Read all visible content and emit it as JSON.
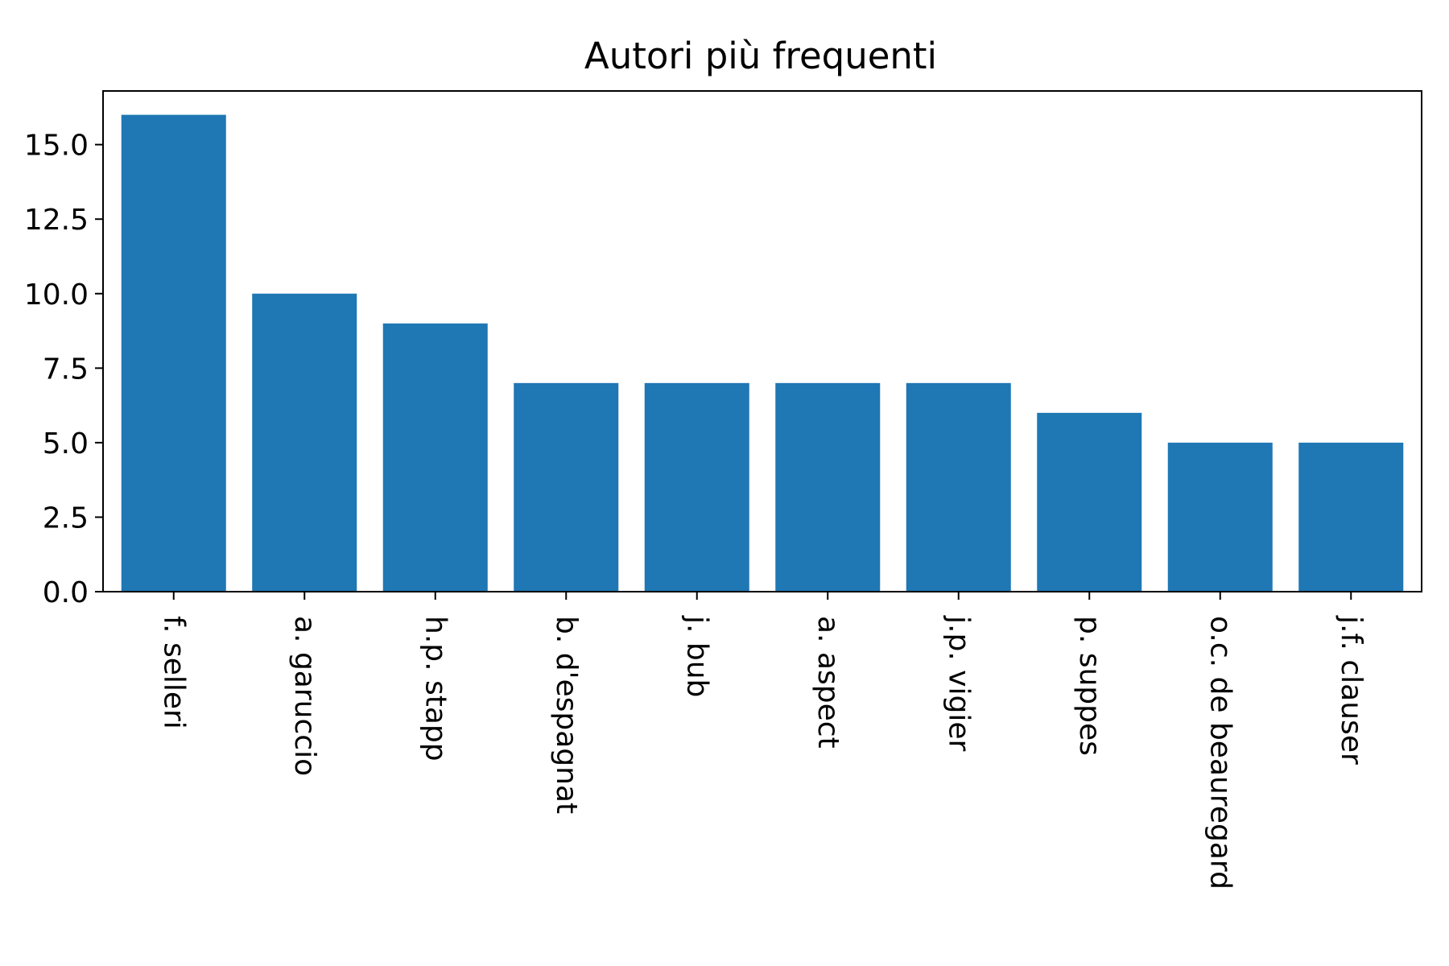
{
  "chart_data": {
    "type": "bar",
    "title": "Autori più frequenti",
    "xlabel": "",
    "ylabel": "",
    "categories": [
      "f. selleri",
      "a. garuccio",
      "h.p. stapp",
      "b. d'espagnat",
      "j. bub",
      "a. aspect",
      "j.p. vigier",
      "p. suppes",
      "o.c. de beauregard",
      "j.f. clauser"
    ],
    "values": [
      16,
      10,
      9,
      7,
      7,
      7,
      7,
      6,
      5,
      5
    ],
    "ylim": [
      0,
      16.8
    ],
    "yticks": [
      "0.0",
      "2.5",
      "5.0",
      "7.5",
      "10.0",
      "12.5",
      "15.0"
    ],
    "ytick_values": [
      0,
      2.5,
      5,
      7.5,
      10,
      12.5,
      15
    ],
    "xtick_rotation": "vertical",
    "bar_color": "#1f77b4",
    "grid": false,
    "legend": "none"
  }
}
